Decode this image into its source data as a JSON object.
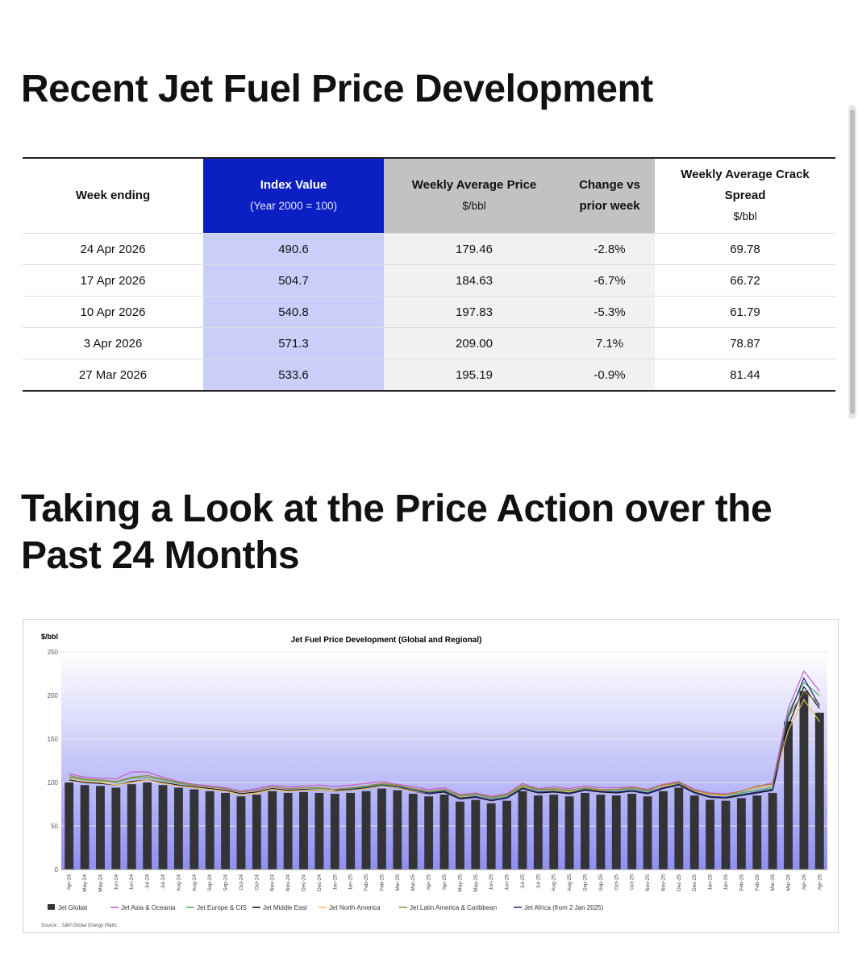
{
  "heading": "Recent Jet Fuel Price Development",
  "table": {
    "header": [
      {
        "title": "Week ending"
      },
      {
        "title": "Index Value",
        "sub": "(Year 2000 = 100)"
      },
      {
        "title": "Weekly Average Price",
        "sub": "$/bbl"
      },
      {
        "title": "Change vs prior week"
      },
      {
        "title": "Weekly Average Crack Spread",
        "sub": "$/bbl"
      }
    ],
    "rows": [
      [
        "24 Apr 2026",
        "490.6",
        "179.46",
        "-2.8%",
        "69.78"
      ],
      [
        "17 Apr 2026",
        "504.7",
        "184.63",
        "-6.7%",
        "66.72"
      ],
      [
        "10 Apr 2026",
        "540.8",
        "197.83",
        "-5.3%",
        "61.79"
      ],
      [
        "3 Apr 2026",
        "571.3",
        "209.00",
        "7.1%",
        "78.87"
      ],
      [
        "27 Mar 2026",
        "533.6",
        "195.19",
        "-0.9%",
        "81.44"
      ]
    ]
  },
  "heading2": "Taking a Look at the Price Action over the Past 24 Months",
  "chart_data": {
    "type": "bar-line",
    "title": "Jet Fuel Price Development (Global and Regional)",
    "y_label": "$/bbl",
    "source": "Source: : S&P Global Energy Platts",
    "ylim": [
      0,
      250
    ],
    "yticks": [
      0,
      50,
      100,
      150,
      200,
      250
    ],
    "grid": true,
    "categories": [
      "Apr-24",
      "May-24",
      "May-24",
      "Jun-24",
      "Jun-24",
      "Jul-24",
      "Jul-24",
      "Aug-24",
      "Aug-24",
      "Sep-24",
      "Sep-24",
      "Oct-24",
      "Oct-24",
      "Nov-24",
      "Nov-24",
      "Dec-24",
      "Dec-24",
      "Jan-25",
      "Jan-25",
      "Feb-25",
      "Feb-25",
      "Mar-25",
      "Mar-25",
      "Apr-25",
      "Apr-25",
      "May-25",
      "May-25",
      "Jun-25",
      "Jun-25",
      "Jul-25",
      "Jul-25",
      "Aug-25",
      "Aug-25",
      "Sep-25",
      "Sep-25",
      "Oct-25",
      "Oct-25",
      "Nov-25",
      "Nov-25",
      "Dec-25",
      "Dec-25",
      "Jan-26",
      "Jan-26",
      "Feb-26",
      "Feb-26",
      "Mar-26",
      "Mar-26",
      "Apr-26",
      "Apr-26"
    ],
    "series": [
      {
        "name": "Jet Global",
        "kind": "bar",
        "color": "#333338",
        "values": [
          100,
          97,
          96,
          94,
          98,
          100,
          97,
          94,
          92,
          90,
          88,
          84,
          86,
          90,
          88,
          89,
          88,
          87,
          88,
          90,
          93,
          91,
          87,
          84,
          86,
          78,
          80,
          76,
          79,
          90,
          85,
          86,
          84,
          88,
          86,
          85,
          87,
          84,
          90,
          94,
          85,
          80,
          79,
          82,
          85,
          88,
          170,
          205,
          180
        ]
      },
      {
        "name": "Jet Asia & Oceania",
        "kind": "line",
        "color": "#c15fc9",
        "values": [
          110,
          106,
          105,
          104,
          112,
          112,
          106,
          101,
          98,
          96,
          94,
          90,
          93,
          97,
          95,
          96,
          97,
          95,
          97,
          99,
          101,
          98,
          95,
          92,
          94,
          86,
          88,
          84,
          87,
          99,
          93,
          95,
          93,
          96,
          94,
          94,
          95,
          92,
          98,
          101,
          92,
          88,
          87,
          90,
          95,
          100,
          185,
          228,
          205
        ]
      },
      {
        "name": "Jet Europe & CIS",
        "kind": "line",
        "color": "#4caf50",
        "values": [
          106,
          103,
          102,
          100,
          105,
          106,
          103,
          99,
          97,
          95,
          93,
          89,
          91,
          95,
          93,
          94,
          93,
          92,
          93,
          95,
          98,
          96,
          92,
          89,
          91,
          84,
          86,
          82,
          85,
          96,
          91,
          92,
          90,
          93,
          91,
          91,
          93,
          90,
          96,
          99,
          90,
          86,
          85,
          88,
          91,
          94,
          180,
          215,
          200
        ]
      },
      {
        "name": "Jet Middle East",
        "kind": "line",
        "color": "#111111",
        "values": [
          103,
          100,
          99,
          97,
          101,
          103,
          100,
          97,
          95,
          93,
          91,
          87,
          89,
          93,
          91,
          92,
          91,
          90,
          91,
          93,
          96,
          94,
          90,
          87,
          89,
          81,
          83,
          79,
          82,
          93,
          88,
          89,
          87,
          91,
          89,
          88,
          90,
          87,
          93,
          97,
          88,
          83,
          82,
          85,
          88,
          91,
          165,
          210,
          185
        ]
      },
      {
        "name": "Jet North America",
        "kind": "line",
        "color": "#f2c14e",
        "values": [
          104,
          101,
          100,
          97,
          100,
          103,
          99,
          96,
          94,
          92,
          90,
          86,
          88,
          92,
          90,
          91,
          91,
          90,
          91,
          93,
          96,
          94,
          90,
          88,
          90,
          83,
          84,
          80,
          83,
          95,
          89,
          91,
          89,
          92,
          91,
          92,
          94,
          91,
          96,
          98,
          90,
          86,
          85,
          90,
          94,
          96,
          160,
          195,
          170
        ]
      },
      {
        "name": "Jet Latin America & Caribbean",
        "kind": "line",
        "color": "#a3823a",
        "values": [
          108,
          104,
          103,
          101,
          106,
          108,
          104,
          100,
          97,
          95,
          93,
          89,
          91,
          95,
          93,
          94,
          94,
          92,
          94,
          96,
          99,
          97,
          93,
          90,
          92,
          85,
          87,
          83,
          86,
          97,
          92,
          93,
          91,
          94,
          92,
          92,
          94,
          91,
          97,
          100,
          91,
          87,
          86,
          90,
          96,
          98,
          175,
          205,
          190
        ]
      },
      {
        "name": "Jet Africa (from 2 Jan 2025)",
        "kind": "line",
        "color": "#1f2a80",
        "values": [
          null,
          null,
          null,
          null,
          null,
          null,
          null,
          null,
          null,
          null,
          null,
          null,
          null,
          null,
          null,
          null,
          null,
          91,
          92,
          94,
          97,
          95,
          91,
          88,
          90,
          82,
          84,
          80,
          83,
          94,
          89,
          90,
          88,
          92,
          90,
          89,
          91,
          88,
          94,
          98,
          89,
          84,
          83,
          86,
          89,
          92,
          175,
          220,
          188
        ]
      }
    ]
  }
}
